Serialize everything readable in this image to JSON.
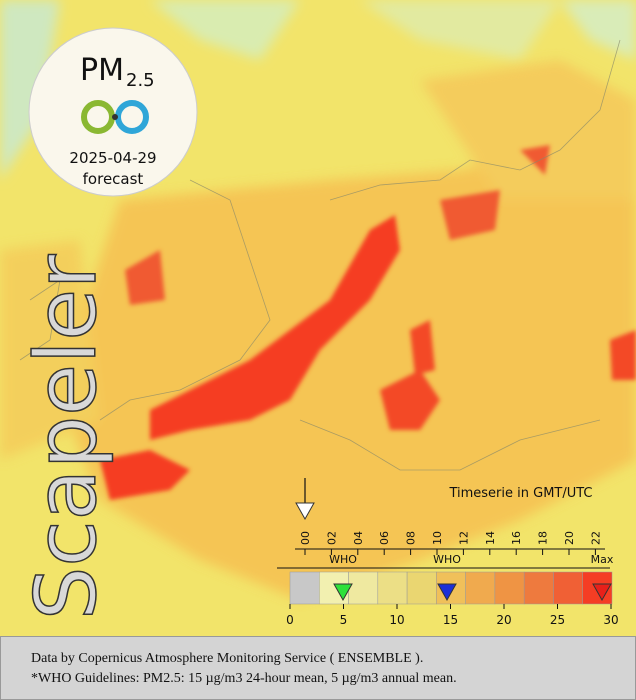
{
  "badge": {
    "title": "PM",
    "subscript": "2.5",
    "date": "2025-04-29",
    "label": "forecast"
  },
  "brand": "Scapeler",
  "timeseries": {
    "title": "Timeserie in GMT/UTC",
    "hours": [
      "00",
      "02",
      "04",
      "06",
      "08",
      "10",
      "12",
      "14",
      "16",
      "18",
      "20",
      "22"
    ]
  },
  "legend": {
    "markers": [
      "WHO",
      "WHO",
      "Max"
    ],
    "ticks": [
      0,
      5,
      10,
      15,
      20,
      25,
      30
    ]
  },
  "footer": [
    "Data by Copernicus Atmosphere Monitoring Service ( ENSEMBLE ).",
    "*WHO Guidelines: PM2.5: 15 µg/m3 24-hour mean, 5 µg/m3 annual mean."
  ]
}
